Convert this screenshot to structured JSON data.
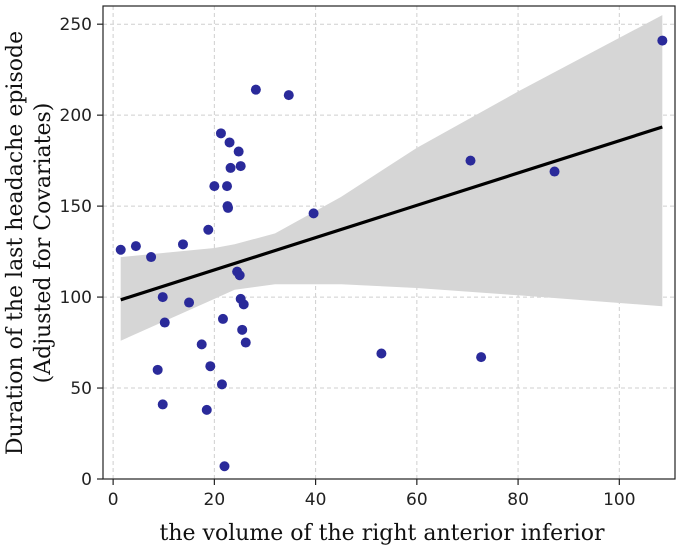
{
  "chart_data": {
    "type": "scatter",
    "xlabel": "the volume of the right anterior inferior",
    "ylabel_line1": "Duration of the last headache episode",
    "ylabel_line2": "(Adjusted for Covariates)",
    "xlim": [
      -2,
      111
    ],
    "ylim": [
      0,
      260
    ],
    "xticks": [
      0,
      20,
      40,
      60,
      80,
      100
    ],
    "yticks": [
      0,
      50,
      100,
      150,
      200,
      250
    ],
    "grid": true,
    "point_color": "#2a2a9a",
    "line_color": "#000000",
    "band_color": "#d6d6d6",
    "points": [
      {
        "x": 1.5,
        "y": 126
      },
      {
        "x": 4.5,
        "y": 128
      },
      {
        "x": 7.5,
        "y": 122
      },
      {
        "x": 8.8,
        "y": 60
      },
      {
        "x": 9.8,
        "y": 100
      },
      {
        "x": 9.8,
        "y": 41
      },
      {
        "x": 10.2,
        "y": 86
      },
      {
        "x": 13.8,
        "y": 129
      },
      {
        "x": 15.0,
        "y": 97
      },
      {
        "x": 17.5,
        "y": 74
      },
      {
        "x": 18.5,
        "y": 38
      },
      {
        "x": 18.8,
        "y": 137
      },
      {
        "x": 19.2,
        "y": 62
      },
      {
        "x": 20.0,
        "y": 161
      },
      {
        "x": 21.3,
        "y": 190
      },
      {
        "x": 21.5,
        "y": 52
      },
      {
        "x": 21.7,
        "y": 88
      },
      {
        "x": 22.0,
        "y": 7
      },
      {
        "x": 22.5,
        "y": 161
      },
      {
        "x": 22.6,
        "y": 150
      },
      {
        "x": 22.7,
        "y": 149
      },
      {
        "x": 23.0,
        "y": 185
      },
      {
        "x": 23.2,
        "y": 171
      },
      {
        "x": 24.5,
        "y": 114
      },
      {
        "x": 24.8,
        "y": 180
      },
      {
        "x": 25.0,
        "y": 112
      },
      {
        "x": 25.2,
        "y": 99
      },
      {
        "x": 25.2,
        "y": 172
      },
      {
        "x": 25.5,
        "y": 82
      },
      {
        "x": 25.8,
        "y": 96
      },
      {
        "x": 26.2,
        "y": 75
      },
      {
        "x": 28.2,
        "y": 214
      },
      {
        "x": 34.7,
        "y": 211
      },
      {
        "x": 39.6,
        "y": 146
      },
      {
        "x": 53.0,
        "y": 69
      },
      {
        "x": 70.6,
        "y": 175
      },
      {
        "x": 72.7,
        "y": 67
      },
      {
        "x": 87.2,
        "y": 169
      },
      {
        "x": 108.5,
        "y": 241
      }
    ],
    "regression_line": {
      "x": [
        1.5,
        108.5
      ],
      "y": [
        98.5,
        193.5
      ]
    },
    "confidence_band": {
      "x": [
        1.5,
        20,
        24,
        32,
        45,
        60,
        80,
        108.5
      ],
      "lower": [
        76,
        99,
        104,
        107,
        107,
        105,
        101,
        95
      ],
      "upper": [
        122,
        127,
        129,
        135,
        155,
        182,
        213,
        255
      ]
    }
  }
}
